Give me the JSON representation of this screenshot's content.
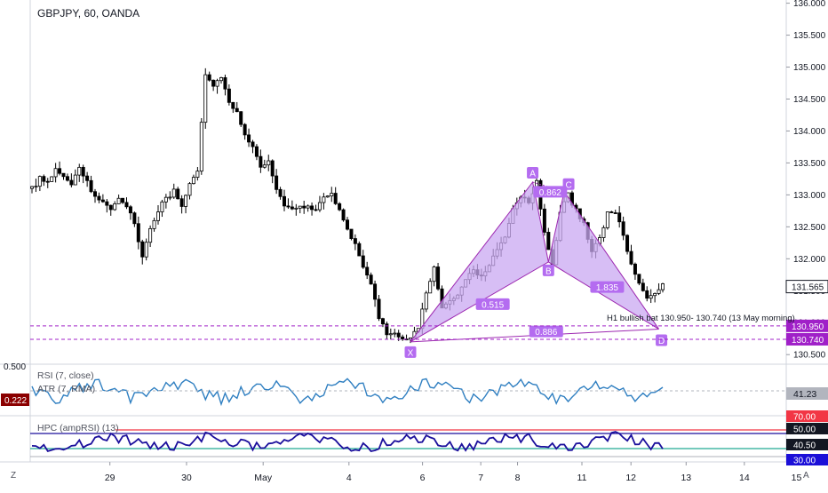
{
  "header": {
    "symbol_line": "GBPJPY, 60, OANDA"
  },
  "indicators": {
    "rsi_label": "RSI (7, close)",
    "atr_label": "ATR (7, RMA)",
    "hpc_label": "HPC (ampRSI) (13)",
    "pane_scale_value": "0.500",
    "atr_badge": "0.222",
    "rsi_value": "41.23",
    "hpc_levels": [
      "70.00",
      "50.00",
      "40.50",
      "30.00"
    ]
  },
  "colors": {
    "candle": "#000000",
    "pattern_fill": "#c9a8f2",
    "pattern_line": "#9c27b0",
    "pattern_label": "#b46cf0",
    "level_line": "#a020c8",
    "rsi_line": "#2f7fc1",
    "hpc_line": "#1b0f9c",
    "hpc_red": "#f23645",
    "hpc_green": "#22ab94",
    "atr_badge": "#8b0000"
  },
  "bottom": {
    "left_button": "Z",
    "right_button": "A"
  },
  "chart_data": {
    "type": "candlestick",
    "title": "GBPJPY, 60, OANDA",
    "x_ticks": [
      "29",
      "30",
      "May",
      "4",
      "6",
      "7",
      "8",
      "11",
      "12",
      "13",
      "14",
      "15"
    ],
    "y_ticks": [
      130.5,
      131.0,
      131.5,
      132.0,
      132.5,
      133.0,
      133.5,
      134.0,
      134.5,
      135.0,
      135.5,
      136.0
    ],
    "y_tick_labels": [
      "130.500",
      "131.000",
      "131.500",
      "132.000",
      "132.500",
      "133.000",
      "133.500",
      "134.000",
      "134.500",
      "135.000",
      "135.500",
      "136.000"
    ],
    "ylim": [
      130.35,
      136.05
    ],
    "last_price": "131.565",
    "close_path": [
      [
        0,
        133.1
      ],
      [
        2,
        133.25
      ],
      [
        4,
        133.2
      ],
      [
        6,
        133.4
      ],
      [
        8,
        133.3
      ],
      [
        10,
        133.15
      ],
      [
        12,
        133.4
      ],
      [
        14,
        133.2
      ],
      [
        16,
        132.95
      ],
      [
        18,
        132.9
      ],
      [
        20,
        132.8
      ],
      [
        22,
        132.95
      ],
      [
        24,
        132.85
      ],
      [
        26,
        132.55
      ],
      [
        28,
        132.0
      ],
      [
        30,
        132.45
      ],
      [
        32,
        132.75
      ],
      [
        34,
        132.95
      ],
      [
        36,
        133.05
      ],
      [
        38,
        132.85
      ],
      [
        40,
        133.2
      ],
      [
        42,
        133.35
      ],
      [
        44,
        134.9
      ],
      [
        46,
        134.7
      ],
      [
        48,
        134.85
      ],
      [
        50,
        134.45
      ],
      [
        52,
        134.3
      ],
      [
        54,
        133.95
      ],
      [
        56,
        133.75
      ],
      [
        58,
        133.45
      ],
      [
        60,
        133.55
      ],
      [
        62,
        133.05
      ],
      [
        64,
        132.85
      ],
      [
        66,
        132.75
      ],
      [
        68,
        132.8
      ],
      [
        70,
        132.85
      ],
      [
        72,
        132.75
      ],
      [
        74,
        132.95
      ],
      [
        76,
        133.0
      ],
      [
        78,
        132.75
      ],
      [
        80,
        132.45
      ],
      [
        82,
        132.2
      ],
      [
        84,
        131.85
      ],
      [
        86,
        131.6
      ],
      [
        88,
        131.1
      ],
      [
        90,
        130.85
      ],
      [
        92,
        130.8
      ],
      [
        94,
        130.72
      ],
      [
        96,
        130.78
      ],
      [
        98,
        130.9
      ],
      [
        100,
        131.5
      ],
      [
        102,
        131.85
      ],
      [
        104,
        131.25
      ],
      [
        106,
        131.35
      ],
      [
        108,
        131.45
      ],
      [
        110,
        131.7
      ],
      [
        112,
        131.8
      ],
      [
        114,
        131.75
      ],
      [
        116,
        131.9
      ],
      [
        118,
        132.15
      ],
      [
        120,
        132.35
      ],
      [
        122,
        132.75
      ],
      [
        124,
        133.0
      ],
      [
        126,
        132.9
      ],
      [
        128,
        133.2
      ],
      [
        130,
        132.4
      ],
      [
        132,
        131.9
      ],
      [
        134,
        132.75
      ],
      [
        136,
        133.0
      ],
      [
        138,
        132.75
      ],
      [
        140,
        132.55
      ],
      [
        142,
        132.1
      ],
      [
        144,
        132.35
      ],
      [
        146,
        132.7
      ],
      [
        148,
        132.75
      ],
      [
        150,
        132.35
      ],
      [
        152,
        131.95
      ],
      [
        154,
        131.6
      ],
      [
        156,
        131.35
      ],
      [
        158,
        131.45
      ],
      [
        160,
        131.57
      ]
    ],
    "harmonic_pattern": {
      "name": "bullish bat",
      "points": [
        {
          "label": "X",
          "t": 96,
          "price": 130.7
        },
        {
          "label": "A",
          "t": 127,
          "price": 133.2
        },
        {
          "label": "B",
          "t": 131,
          "price": 131.95
        },
        {
          "label": "C",
          "t": 135,
          "price": 133.05
        },
        {
          "label": "D",
          "t": 159,
          "price": 130.9
        }
      ],
      "ratios": [
        "0.515",
        "0.862",
        "1.835",
        "0.886"
      ]
    },
    "levels": [
      {
        "price": 130.95,
        "label": "130.950"
      },
      {
        "price": 130.74,
        "label": "130.740"
      }
    ],
    "annotation": "H1 bullish bat 130.950- 130.740 (13 May morning)"
  }
}
